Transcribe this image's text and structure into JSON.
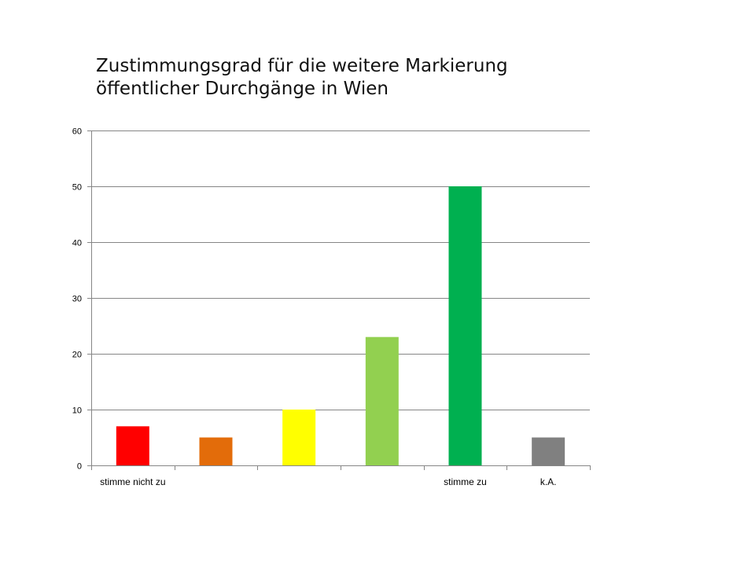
{
  "chart_data": {
    "type": "bar",
    "title_lines": [
      "Zustimmungsgrad  für die weitere Markierung",
      "öffentlicher Durchgänge  in Wien"
    ],
    "categories": [
      "stimme nicht zu",
      "",
      "",
      "",
      "stimme zu",
      "k.A."
    ],
    "values": [
      7,
      5,
      10,
      23,
      50,
      5
    ],
    "colors": [
      "#ff0000",
      "#e36c0a",
      "#ffff00",
      "#92d050",
      "#00b050",
      "#808080"
    ],
    "ylim": [
      0,
      60
    ],
    "yticks": [
      0,
      10,
      20,
      30,
      40,
      50,
      60
    ],
    "grid": true,
    "legend": "none"
  }
}
